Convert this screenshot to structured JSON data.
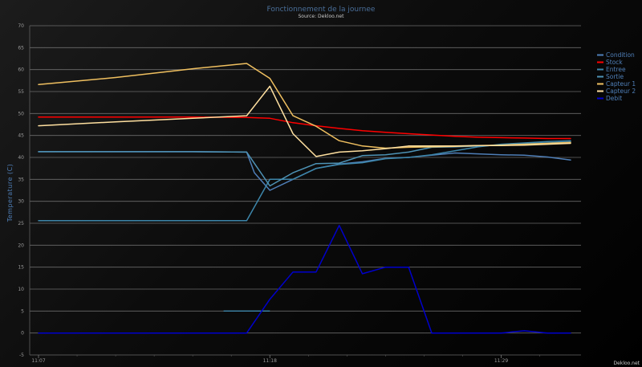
{
  "chart_data": {
    "type": "line",
    "title": "Fonctionnement de la journee",
    "subtitle": "Source: Dekloo.net",
    "ylabel": "Temperature (C)",
    "xlabel": "",
    "ylim": [
      -5,
      70
    ],
    "yticks": [
      -5,
      0,
      5,
      10,
      15,
      20,
      25,
      30,
      35,
      40,
      45,
      50,
      55,
      60,
      65,
      70
    ],
    "ytick_labels": [
      "-5",
      "0",
      "5",
      "10",
      "15",
      "20",
      "25",
      "30",
      "35",
      "40",
      "45",
      "50",
      "55",
      "60",
      "65",
      "70"
    ],
    "xlim": [
      0,
      70
    ],
    "xticks": [
      0,
      30,
      60
    ],
    "xtick_labels": [
      "11:07",
      "11:18",
      "11:29"
    ],
    "grid": true,
    "legend_position": "right",
    "series": [
      {
        "name": "Condition",
        "color": "#4f7fb8",
        "values": [
          [
            0,
            41.3
          ],
          [
            10,
            41.3
          ],
          [
            20,
            41.3
          ],
          [
            27,
            41.2
          ],
          [
            28,
            36.5
          ],
          [
            30,
            32.5
          ],
          [
            33,
            35
          ],
          [
            36,
            37.5
          ],
          [
            39,
            38.5
          ],
          [
            42,
            39
          ],
          [
            45,
            39.8
          ],
          [
            48,
            40
          ],
          [
            51,
            40.5
          ],
          [
            54,
            41
          ],
          [
            57,
            40.8
          ],
          [
            60,
            40.6
          ],
          [
            63,
            40.5
          ],
          [
            66,
            40.1
          ],
          [
            69,
            39.4
          ]
        ]
      },
      {
        "name": "Stock",
        "color": "#ff0000",
        "values": [
          [
            0,
            49.2
          ],
          [
            10,
            49.2
          ],
          [
            20,
            49.2
          ],
          [
            27,
            49.1
          ],
          [
            30,
            48.9
          ],
          [
            33,
            47.9
          ],
          [
            36,
            47.2
          ],
          [
            39,
            46.6
          ],
          [
            42,
            46.1
          ],
          [
            45,
            45.7
          ],
          [
            48,
            45.4
          ],
          [
            51,
            45.1
          ],
          [
            54,
            44.8
          ],
          [
            57,
            44.6
          ],
          [
            60,
            44.5
          ],
          [
            63,
            44.4
          ],
          [
            66,
            44.3
          ],
          [
            69,
            44.3
          ]
        ]
      },
      {
        "name": "Entree",
        "color": "#3d86aa",
        "values": [
          [
            0,
            25.6
          ],
          [
            10,
            25.6
          ],
          [
            20,
            25.6
          ],
          [
            27,
            25.6
          ],
          [
            30,
            35
          ],
          [
            33,
            35
          ],
          [
            36,
            37.5
          ],
          [
            39,
            38.4
          ],
          [
            42,
            38.8
          ],
          [
            45,
            39.7
          ],
          [
            48,
            40
          ],
          [
            51,
            40.6
          ],
          [
            54,
            41.5
          ],
          [
            57,
            42.4
          ],
          [
            60,
            43
          ],
          [
            63,
            43.3
          ],
          [
            66,
            43.6
          ],
          [
            69,
            43.8
          ]
        ]
      },
      {
        "name": "Sortie",
        "color": "#4e93b6",
        "values": [
          [
            0,
            41.3
          ],
          [
            10,
            41.3
          ],
          [
            20,
            41.3
          ],
          [
            27,
            41.2
          ],
          [
            30,
            33.5
          ],
          [
            33,
            36.5
          ],
          [
            36,
            38.6
          ],
          [
            39,
            38.7
          ],
          [
            42,
            40.4
          ],
          [
            45,
            40.6
          ],
          [
            48,
            41.2
          ],
          [
            51,
            42.3
          ],
          [
            54,
            42.4
          ],
          [
            57,
            42.6
          ],
          [
            60,
            42.8
          ],
          [
            63,
            43.1
          ],
          [
            66,
            43.3
          ],
          [
            69,
            43.5
          ]
        ]
      },
      {
        "name": "Capteur 1",
        "color": "#f0c060",
        "values": [
          [
            0,
            56.6
          ],
          [
            10,
            58.2
          ],
          [
            20,
            60.2
          ],
          [
            27,
            61.4
          ],
          [
            30,
            58
          ],
          [
            33,
            49.5
          ],
          [
            36,
            47.1
          ],
          [
            39,
            43.8
          ],
          [
            42,
            42.6
          ],
          [
            45,
            42.1
          ],
          [
            48,
            42.3
          ],
          [
            51,
            42.4
          ],
          [
            54,
            42.5
          ],
          [
            57,
            42.7
          ],
          [
            60,
            42.8
          ],
          [
            63,
            43
          ],
          [
            66,
            43.2
          ],
          [
            69,
            43.4
          ]
        ]
      },
      {
        "name": "Capteur 2",
        "color": "#ffe0a0",
        "values": [
          [
            0,
            47.2
          ],
          [
            10,
            48.1
          ],
          [
            20,
            48.9
          ],
          [
            27,
            49.5
          ],
          [
            30,
            56.2
          ],
          [
            33,
            45.4
          ],
          [
            36,
            40.2
          ],
          [
            39,
            41.2
          ],
          [
            42,
            41.5
          ],
          [
            45,
            42
          ],
          [
            48,
            42.6
          ],
          [
            51,
            42.6
          ],
          [
            54,
            42.6
          ],
          [
            57,
            42.7
          ],
          [
            60,
            42.7
          ],
          [
            63,
            42.8
          ],
          [
            66,
            43
          ],
          [
            69,
            43.2
          ]
        ]
      },
      {
        "name": "Debit",
        "color": "#0000cc",
        "values": [
          [
            0,
            0
          ],
          [
            10,
            0
          ],
          [
            20,
            0
          ],
          [
            27,
            0
          ],
          [
            30,
            7.7
          ],
          [
            33,
            13.9
          ],
          [
            36,
            13.9
          ],
          [
            39,
            24.5
          ],
          [
            42,
            13.5
          ],
          [
            45,
            15
          ],
          [
            48,
            15
          ],
          [
            51,
            0
          ],
          [
            54,
            0
          ],
          [
            57,
            0
          ],
          [
            60,
            0
          ],
          [
            63,
            0.5
          ],
          [
            66,
            0
          ],
          [
            69,
            0
          ]
        ]
      }
    ],
    "annotations": [
      {
        "color": "#3d86aa",
        "x": [
          24,
          30
        ],
        "y": [
          5,
          5
        ]
      }
    ]
  },
  "footer": {
    "credit": "Dekloo.net"
  }
}
